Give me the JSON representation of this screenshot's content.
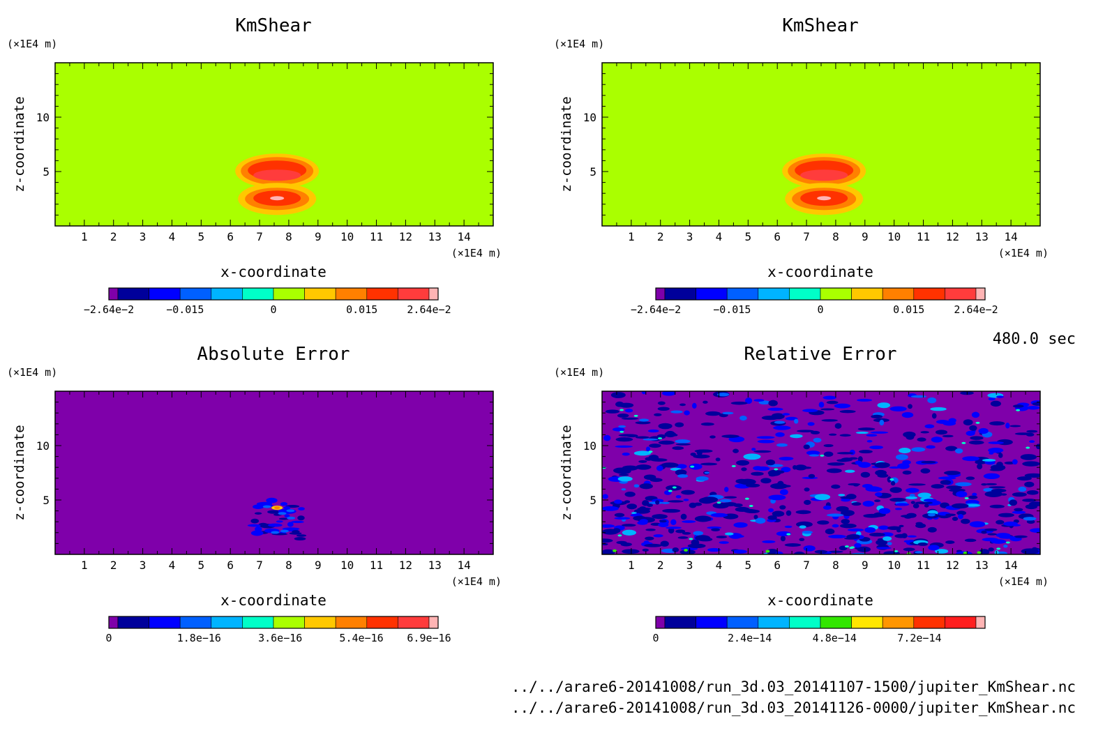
{
  "time_label": "480.0 sec",
  "footer_lines": [
    "../../arare6-20141008/run_3d.03_20141107-1500/jupiter_KmShear.nc",
    "../../arare6-20141008/run_3d.03_20141126-0000/jupiter_KmShear.nc"
  ],
  "chart_data": [
    {
      "type": "heatmap",
      "title": "KmShear",
      "xlabel": "x-coordinate",
      "ylabel": "z-coordinate",
      "x_unit": "(×1E4 m)",
      "y_unit": "(×1E4 m)",
      "xlim": [
        0,
        15
      ],
      "ylim": [
        0,
        15
      ],
      "xticks": [
        1,
        2,
        3,
        4,
        5,
        6,
        7,
        8,
        9,
        10,
        11,
        12,
        13,
        14
      ],
      "yticks": [
        5,
        10
      ],
      "background_color": "#aaff00",
      "pattern": "shear-blob",
      "blob_center": [
        7.6,
        3.0
      ],
      "colorbar": {
        "colors": [
          "#7f00aa",
          "#00009b",
          "#0000ff",
          "#0060ff",
          "#00b4ff",
          "#00ffc8",
          "#aaff00",
          "#ffc800",
          "#ff8000",
          "#ff3200",
          "#ff3c3c",
          "#ffb4b4"
        ],
        "ticks": [
          {
            "label": "−2.64e−2",
            "value": -0.0264
          },
          {
            "label": "−0.015",
            "value": -0.015
          },
          {
            "label": "0",
            "value": 0
          },
          {
            "label": "0.015",
            "value": 0.015
          },
          {
            "label": "2.64e−2",
            "value": 0.0264
          }
        ],
        "range": [
          -0.0264,
          0.0264
        ]
      }
    },
    {
      "type": "heatmap",
      "title": "KmShear",
      "xlabel": "x-coordinate",
      "ylabel": "z-coordinate",
      "x_unit": "(×1E4 m)",
      "y_unit": "(×1E4 m)",
      "xlim": [
        0,
        15
      ],
      "ylim": [
        0,
        15
      ],
      "xticks": [
        1,
        2,
        3,
        4,
        5,
        6,
        7,
        8,
        9,
        10,
        11,
        12,
        13,
        14
      ],
      "yticks": [
        5,
        10
      ],
      "background_color": "#aaff00",
      "pattern": "shear-blob",
      "blob_center": [
        7.6,
        3.0
      ],
      "colorbar": {
        "colors": [
          "#7f00aa",
          "#00009b",
          "#0000ff",
          "#0060ff",
          "#00b4ff",
          "#00ffc8",
          "#aaff00",
          "#ffc800",
          "#ff8000",
          "#ff3200",
          "#ff3c3c",
          "#ffb4b4"
        ],
        "ticks": [
          {
            "label": "−2.64e−2",
            "value": -0.0264
          },
          {
            "label": "−0.015",
            "value": -0.015
          },
          {
            "label": "0",
            "value": 0
          },
          {
            "label": "0.015",
            "value": 0.015
          },
          {
            "label": "2.64e−2",
            "value": 0.0264
          }
        ],
        "range": [
          -0.0264,
          0.0264
        ]
      }
    },
    {
      "type": "heatmap",
      "title": "Absolute Error",
      "xlabel": "x-coordinate",
      "ylabel": "z-coordinate",
      "x_unit": "(×1E4 m)",
      "y_unit": "(×1E4 m)",
      "xlim": [
        0,
        15
      ],
      "ylim": [
        0,
        15
      ],
      "xticks": [
        1,
        2,
        3,
        4,
        5,
        6,
        7,
        8,
        9,
        10,
        11,
        12,
        13,
        14
      ],
      "yticks": [
        5,
        10
      ],
      "background_color": "#7f00aa",
      "pattern": "error-blob",
      "blob_center": [
        7.6,
        3.2
      ],
      "colorbar": {
        "colors": [
          "#7f00aa",
          "#00009b",
          "#0000ff",
          "#0060ff",
          "#00b4ff",
          "#00ffc8",
          "#aaff00",
          "#ffc800",
          "#ff8000",
          "#ff3200",
          "#ff3c3c",
          "#ffb4b4"
        ],
        "ticks": [
          {
            "label": "0",
            "value": 0
          },
          {
            "label": "1.8e−16",
            "value": 1.8e-16
          },
          {
            "label": "3.6e−16",
            "value": 3.6e-16
          },
          {
            "label": "5.4e−16",
            "value": 5.4e-16
          },
          {
            "label": "6.9e−16",
            "value": 6.9e-16
          }
        ],
        "range": [
          0,
          6.9e-16
        ]
      }
    },
    {
      "type": "heatmap",
      "title": "Relative Error",
      "xlabel": "x-coordinate",
      "ylabel": "z-coordinate",
      "x_unit": "(×1E4 m)",
      "y_unit": "(×1E4 m)",
      "xlim": [
        0,
        15
      ],
      "ylim": [
        0,
        15
      ],
      "xticks": [
        1,
        2,
        3,
        4,
        5,
        6,
        7,
        8,
        9,
        10,
        11,
        12,
        13,
        14
      ],
      "yticks": [
        5,
        10
      ],
      "background_color": "#7f00aa",
      "pattern": "noise",
      "colorbar": {
        "colors": [
          "#7f00aa",
          "#00009b",
          "#0000ff",
          "#0060ff",
          "#00b4ff",
          "#00ffc8",
          "#32e600",
          "#ffe600",
          "#ff9600",
          "#ff3200",
          "#ff1e1e",
          "#ffb4b4"
        ],
        "ticks": [
          {
            "label": "0",
            "value": 0
          },
          {
            "label": "2.4e−14",
            "value": 2.4e-14
          },
          {
            "label": "4.8e−14",
            "value": 4.8e-14
          },
          {
            "label": "7.2e−14",
            "value": 7.2e-14
          }
        ],
        "range": [
          0,
          8.8e-14
        ]
      }
    }
  ]
}
